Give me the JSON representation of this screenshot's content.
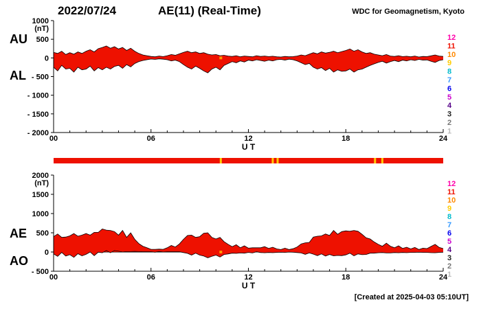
{
  "header": {
    "date": "2022/07/24",
    "title": "AE(11) (Real-Time)",
    "credit": "WDC for Geomagnetism, Kyoto"
  },
  "footer": {
    "created": "[Created at 2025-04-03 05:10UT]"
  },
  "axis_labels": {
    "au": "AU",
    "al": "AL",
    "ae": "AE",
    "ao": "AO",
    "ut": "U T",
    "unit": "(nT)"
  },
  "station_scale": [
    {
      "count": "12",
      "color": "#ff00aa"
    },
    {
      "count": "11",
      "color": "#ee1100"
    },
    {
      "count": "10",
      "color": "#ff8800"
    },
    {
      "count": "9",
      "color": "#ffcc00"
    },
    {
      "count": "8",
      "color": "#00bbcc"
    },
    {
      "count": "7",
      "color": "#3399ff"
    },
    {
      "count": "6",
      "color": "#0000ee"
    },
    {
      "count": "5",
      "color": "#cc00cc"
    },
    {
      "count": "4",
      "color": "#550088"
    },
    {
      "count": "3",
      "color": "#222222"
    },
    {
      "count": "2",
      "color": "#777777"
    },
    {
      "count": "1",
      "color": "#bbbbbb"
    }
  ],
  "availability_bar": {
    "bar_color": "#ee1100",
    "gap_color": "#ffcc00",
    "gaps_ut": [
      10.3,
      13.5,
      13.8,
      19.8,
      20.25
    ]
  },
  "chart_data": [
    {
      "type": "area",
      "fill_mode": "band",
      "xlabel": "U T",
      "ylabel": "(nT)",
      "x_start_hour": 0,
      "x_end_hour": 24,
      "x_step_hours": 0.25,
      "x_ticks": [
        {
          "value": 0,
          "label": "00"
        },
        {
          "value": 6,
          "label": "06"
        },
        {
          "value": 12,
          "label": "12"
        },
        {
          "value": 18,
          "label": "18"
        },
        {
          "value": 24,
          "label": "24"
        }
      ],
      "ylim": [
        -2000,
        1000
      ],
      "y_ticks": [
        {
          "value": 1000,
          "label": "1000"
        },
        {
          "value": 500,
          "label": "500"
        },
        {
          "value": 0,
          "label": "0"
        },
        {
          "value": -500,
          "label": "- 500"
        },
        {
          "value": -1000,
          "label": "- 1000"
        },
        {
          "value": -1500,
          "label": "- 1500"
        },
        {
          "value": -2000,
          "label": "- 2000"
        }
      ],
      "fill_color": "#ee1100",
      "line_color": "#000000",
      "event_marker_ut": [
        10.3
      ],
      "event_marker_color": "#ff9900",
      "series": [
        {
          "name": "AU",
          "values": [
            150,
            120,
            180,
            90,
            140,
            100,
            160,
            120,
            180,
            220,
            160,
            250,
            280,
            320,
            260,
            300,
            240,
            280,
            200,
            260,
            180,
            120,
            80,
            60,
            40,
            30,
            50,
            35,
            60,
            90,
            70,
            110,
            150,
            180,
            140,
            160,
            120,
            140,
            100,
            80,
            90,
            60,
            70,
            50,
            40,
            60,
            30,
            50,
            40,
            30,
            60,
            40,
            50,
            35,
            45,
            30,
            25,
            40,
            30,
            35,
            50,
            80,
            60,
            100,
            140,
            110,
            160,
            130,
            150,
            180,
            140,
            170,
            200,
            240,
            180,
            220,
            160,
            120,
            140,
            100,
            80,
            60,
            90,
            50,
            40,
            60,
            35,
            45,
            30,
            50,
            25,
            40,
            35,
            55,
            80,
            50,
            40
          ]
        },
        {
          "name": "AL",
          "values": [
            -250,
            -350,
            -200,
            -300,
            -280,
            -380,
            -250,
            -320,
            -300,
            -220,
            -350,
            -260,
            -320,
            -250,
            -300,
            -230,
            -200,
            -280,
            -180,
            -240,
            -150,
            -100,
            -70,
            -50,
            -30,
            -40,
            -25,
            -35,
            -50,
            -80,
            -60,
            -100,
            -180,
            -250,
            -300,
            -220,
            -280,
            -350,
            -400,
            -300,
            -250,
            -320,
            -200,
            -150,
            -100,
            -130,
            -80,
            -110,
            -60,
            -80,
            -50,
            -70,
            -90,
            -60,
            -80,
            -50,
            -40,
            -60,
            -35,
            -50,
            -80,
            -130,
            -180,
            -150,
            -250,
            -300,
            -260,
            -340,
            -280,
            -380,
            -320,
            -360,
            -350,
            -300,
            -380,
            -320,
            -300,
            -250,
            -200,
            -160,
            -120,
            -90,
            -140,
            -100,
            -70,
            -100,
            -60,
            -80,
            -50,
            -70,
            -40,
            -60,
            -55,
            -90,
            -120,
            -70,
            -50
          ]
        }
      ]
    },
    {
      "type": "area",
      "fill_mode": "baseline",
      "xlabel": "U T",
      "ylabel": "(nT)",
      "x_start_hour": 0,
      "x_end_hour": 24,
      "x_step_hours": 0.25,
      "x_ticks": [
        {
          "value": 0,
          "label": "00"
        },
        {
          "value": 6,
          "label": "06"
        },
        {
          "value": 12,
          "label": "12"
        },
        {
          "value": 18,
          "label": "18"
        },
        {
          "value": 24,
          "label": "24"
        }
      ],
      "ylim": [
        -500,
        2000
      ],
      "y_ticks": [
        {
          "value": 2000,
          "label": "2000"
        },
        {
          "value": 1500,
          "label": "1500"
        },
        {
          "value": 1000,
          "label": "1000"
        },
        {
          "value": 500,
          "label": "500"
        },
        {
          "value": 0,
          "label": "0"
        },
        {
          "value": -500,
          "label": "- 500"
        }
      ],
      "fill_color": "#ee1100",
      "line_color": "#000000",
      "event_marker_ut": [
        10.3
      ],
      "event_marker_color": "#ff9900",
      "series": [
        {
          "name": "AE",
          "values": [
            400,
            470,
            380,
            390,
            420,
            480,
            410,
            440,
            480,
            440,
            510,
            510,
            600,
            570,
            560,
            530,
            440,
            560,
            380,
            500,
            330,
            220,
            150,
            110,
            70,
            70,
            75,
            70,
            110,
            170,
            130,
            210,
            330,
            430,
            440,
            380,
            400,
            490,
            500,
            380,
            340,
            380,
            270,
            200,
            140,
            190,
            110,
            160,
            100,
            110,
            110,
            110,
            140,
            95,
            125,
            80,
            65,
            100,
            65,
            85,
            130,
            210,
            240,
            250,
            390,
            410,
            420,
            470,
            430,
            560,
            460,
            530,
            550,
            540,
            560,
            540,
            460,
            370,
            340,
            260,
            200,
            150,
            230,
            150,
            110,
            160,
            95,
            125,
            80,
            120,
            65,
            100,
            90,
            145,
            200,
            120,
            90
          ]
        },
        {
          "name": "AO",
          "values": [
            -50,
            -115,
            -10,
            -105,
            -70,
            -140,
            -45,
            -100,
            -60,
            0,
            -95,
            -5,
            -20,
            35,
            -20,
            35,
            20,
            0,
            10,
            10,
            15,
            10,
            5,
            5,
            5,
            -5,
            12,
            0,
            5,
            5,
            5,
            5,
            -15,
            -35,
            -80,
            -30,
            -80,
            -105,
            -150,
            -110,
            -80,
            -130,
            -65,
            -50,
            -30,
            -35,
            -25,
            -30,
            -10,
            -25,
            5,
            -15,
            -20,
            -12,
            -17,
            -10,
            -7,
            -10,
            -2,
            -7,
            -15,
            -25,
            -60,
            -25,
            -55,
            -95,
            -50,
            -105,
            -65,
            -100,
            -90,
            -95,
            -75,
            -30,
            -100,
            -50,
            -70,
            -65,
            -30,
            -30,
            -20,
            -15,
            -25,
            -25,
            -15,
            -20,
            -12,
            -17,
            -10,
            -10,
            -7,
            -10,
            -10,
            -17,
            -20,
            -10,
            -5
          ]
        }
      ]
    }
  ]
}
